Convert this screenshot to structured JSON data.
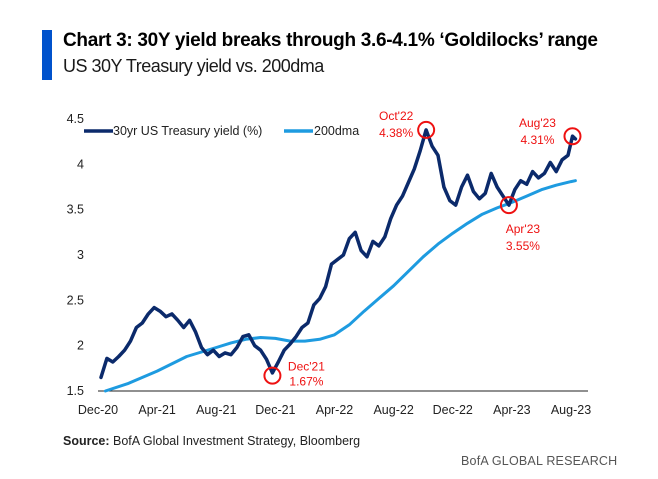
{
  "header": {
    "title": "Chart 3: 30Y yield breaks through 3.6-4.1% ‘Goldilocks’ range",
    "subtitle": "US 30Y Treasury yield vs. 200dma",
    "accent_color": "#0052CC"
  },
  "footer": {
    "source_label": "Source:",
    "source_text": " BofA Global Investment Strategy, Bloomberg",
    "brand": "BofA GLOBAL RESEARCH"
  },
  "chart_data": {
    "type": "line",
    "title": "Chart 3: 30Y yield breaks through 3.6-4.1% ‘Goldilocks’ range",
    "subtitle": "US 30Y Treasury yield vs. 200dma",
    "xlabel": "",
    "ylabel": "",
    "ylim": [
      1.5,
      4.5
    ],
    "yticks": [
      "1.5",
      "2",
      "2.5",
      "3",
      "3.5",
      "4",
      "4.5"
    ],
    "ytick_values": [
      1.5,
      2,
      2.5,
      3,
      3.5,
      4,
      4.5
    ],
    "xticks": [
      "Dec-20",
      "Apr-21",
      "Aug-21",
      "Dec-21",
      "Apr-22",
      "Aug-22",
      "Dec-22",
      "Apr-23",
      "Aug-23"
    ],
    "xtick_months": [
      0,
      4,
      8,
      12,
      16,
      20,
      24,
      28,
      32
    ],
    "xlim_months": [
      0,
      32.5
    ],
    "grid": false,
    "legend_position": "top-left",
    "series": [
      {
        "name": "30yr US Treasury yield (%)",
        "color": "#0B2A6B",
        "x_months": [
          0.2,
          0.6,
          1.0,
          1.4,
          1.8,
          2.2,
          2.6,
          3.0,
          3.4,
          3.8,
          4.2,
          4.6,
          5.0,
          5.4,
          5.8,
          6.2,
          6.6,
          7.0,
          7.4,
          7.8,
          8.2,
          8.6,
          9.0,
          9.4,
          9.8,
          10.2,
          10.6,
          11.0,
          11.4,
          11.8,
          12.2,
          12.6,
          13.0,
          13.4,
          13.8,
          14.2,
          14.6,
          15.0,
          15.4,
          15.8,
          16.2,
          16.6,
          17.0,
          17.4,
          17.8,
          18.2,
          18.6,
          19.0,
          19.4,
          19.8,
          20.2,
          20.6,
          21.0,
          21.4,
          21.8,
          22.2,
          22.6,
          23.0,
          23.4,
          23.8,
          24.2,
          24.6,
          25.0,
          25.4,
          25.8,
          26.2,
          26.6,
          27.0,
          27.4,
          27.8,
          28.2,
          28.6,
          29.0,
          29.4,
          29.8,
          30.2,
          30.6,
          31.0,
          31.4,
          31.8,
          32.1,
          32.3
        ],
        "values": [
          1.65,
          1.86,
          1.82,
          1.88,
          1.95,
          2.05,
          2.2,
          2.25,
          2.35,
          2.42,
          2.38,
          2.32,
          2.35,
          2.28,
          2.2,
          2.28,
          2.15,
          1.98,
          1.9,
          1.95,
          1.88,
          1.92,
          1.9,
          1.98,
          2.1,
          2.12,
          2.0,
          1.95,
          1.85,
          1.7,
          1.82,
          1.95,
          2.02,
          2.1,
          2.2,
          2.25,
          2.45,
          2.52,
          2.65,
          2.9,
          2.95,
          3.0,
          3.18,
          3.25,
          3.05,
          2.98,
          3.15,
          3.1,
          3.2,
          3.4,
          3.55,
          3.65,
          3.8,
          3.95,
          4.15,
          4.38,
          4.2,
          4.1,
          3.75,
          3.6,
          3.55,
          3.75,
          3.88,
          3.7,
          3.62,
          3.68,
          3.9,
          3.75,
          3.65,
          3.55,
          3.72,
          3.82,
          3.78,
          3.92,
          3.85,
          3.9,
          4.02,
          3.92,
          4.05,
          4.1,
          4.31,
          4.28
        ]
      },
      {
        "name": "200dma",
        "color": "#1E9BE0",
        "x_months": [
          0.5,
          2,
          4,
          6,
          8,
          9,
          10,
          11,
          12,
          13,
          14,
          15,
          16,
          17,
          18,
          19,
          20,
          21,
          22,
          23,
          24,
          25,
          26,
          27,
          28,
          29,
          30,
          31,
          32,
          32.3
        ],
        "values": [
          1.5,
          1.58,
          1.72,
          1.88,
          1.98,
          2.03,
          2.07,
          2.09,
          2.08,
          2.05,
          2.05,
          2.07,
          2.12,
          2.23,
          2.38,
          2.52,
          2.66,
          2.82,
          2.98,
          3.12,
          3.24,
          3.35,
          3.45,
          3.52,
          3.58,
          3.65,
          3.72,
          3.77,
          3.81,
          3.82
        ]
      }
    ],
    "annotations": [
      {
        "label": "Oct'22",
        "value_label": "4.38%",
        "x_month": 22.2,
        "y": 4.38
      },
      {
        "label": "Dec'21",
        "value_label": "1.67%",
        "x_month": 11.8,
        "y": 1.67
      },
      {
        "label": "Apr'23",
        "value_label": "3.55%",
        "x_month": 27.8,
        "y": 3.55
      },
      {
        "label": "Aug'23",
        "value_label": "4.31%",
        "x_month": 32.1,
        "y": 4.31
      }
    ],
    "annotation_color": "#EE1111"
  }
}
